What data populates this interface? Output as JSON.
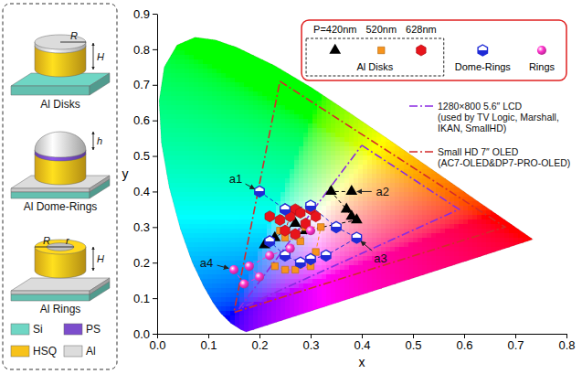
{
  "chart_data": {
    "type": "scatter",
    "x_label": "x",
    "y_label": "y",
    "xlim": [
      0,
      0.8
    ],
    "ylim": [
      0,
      0.9
    ],
    "xticks": [
      {
        "value": 0,
        "label": "0.0"
      },
      0.1,
      0.2,
      0.3,
      0.4,
      0.5,
      0.6,
      0.7,
      0.8
    ],
    "yticks": [
      {
        "value": 0,
        "label": "0.0"
      },
      0.1,
      0.2,
      0.3,
      0.4,
      0.5,
      0.6,
      0.7,
      0.8,
      0.9
    ],
    "legend": "top-right",
    "legend_groups": [
      {
        "title": "Al Disks",
        "members": [
          "P=420nm",
          "520nm",
          "628nm"
        ]
      }
    ],
    "spectral_locus": {
      "x": [
        0.1741,
        0.1644,
        0.1566,
        0.144,
        0.1241,
        0.1096,
        0.0913,
        0.0687,
        0.0454,
        0.0235,
        0.0082,
        0.0039,
        0.0139,
        0.0389,
        0.0743,
        0.1142,
        0.1547,
        0.2296,
        0.3016,
        0.3731,
        0.4441,
        0.5125,
        0.5752,
        0.627,
        0.6915,
        0.7347
      ],
      "y": [
        0.005,
        0.0109,
        0.0177,
        0.0297,
        0.0578,
        0.0868,
        0.1327,
        0.2007,
        0.295,
        0.4127,
        0.5384,
        0.6548,
        0.7502,
        0.812,
        0.8338,
        0.8262,
        0.8059,
        0.7543,
        0.6923,
        0.6245,
        0.5547,
        0.4866,
        0.4242,
        0.3725,
        0.3083,
        0.2653
      ]
    },
    "series": [
      {
        "name": "P=420nm",
        "color": "#000000",
        "marker": "triangle",
        "line_style": "dashed",
        "x": [
          0.38,
          0.34,
          0.37,
          0.38,
          0.39,
          0.29,
          0.27,
          0.23,
          0.21
        ],
        "y": [
          0.4,
          0.4,
          0.35,
          0.33,
          0.32,
          0.29,
          0.31,
          0.27,
          0.25
        ]
      },
      {
        "name": "520nm",
        "color": "#f7941d",
        "marker": "square",
        "line_style": "dashed",
        "x": [
          0.23,
          0.25,
          0.27,
          0.3,
          0.31,
          0.32,
          0.29,
          0.28,
          0.25,
          0.24
        ],
        "y": [
          0.19,
          0.18,
          0.18,
          0.19,
          0.23,
          0.3,
          0.3,
          0.26,
          0.27,
          0.29
        ]
      },
      {
        "name": "628nm",
        "color": "#e8141b",
        "marker": "hexagon",
        "line_style": "dashed",
        "x": [
          0.22,
          0.24,
          0.25,
          0.27,
          0.28,
          0.3,
          0.31,
          0.29,
          0.27,
          0.25,
          0.26
        ],
        "y": [
          0.33,
          0.32,
          0.35,
          0.35,
          0.34,
          0.35,
          0.33,
          0.31,
          0.28,
          0.29,
          0.33
        ]
      },
      {
        "name": "Dome-Rings",
        "color": "#1f2bd6",
        "marker": "dome-hexagon",
        "line_style": "dashed",
        "x": [
          0.2,
          0.25,
          0.3,
          0.35,
          0.39,
          0.33,
          0.3,
          0.28,
          0.25,
          0.22
        ],
        "y": [
          0.4,
          0.35,
          0.36,
          0.3,
          0.27,
          0.22,
          0.21,
          0.2,
          0.22,
          0.26
        ]
      },
      {
        "name": "Rings",
        "color": "#ff33cc",
        "marker": "sphere",
        "line_style": "dashed",
        "x": [
          0.15,
          0.17,
          0.2,
          0.18,
          0.22,
          0.26,
          0.3
        ],
        "y": [
          0.18,
          0.14,
          0.16,
          0.19,
          0.22,
          0.24,
          0.29
        ]
      },
      {
        "name": "1280×800 5.6″ LCD",
        "description": "(used by TV Logic, Marshall, IKAN, SmallHD)",
        "type": "line",
        "color": "#8a2be2",
        "line_style": "dash-dot",
        "x": [
          0.4,
          0.59,
          0.16,
          0.4
        ],
        "y": [
          0.53,
          0.35,
          0.07,
          0.53
        ]
      },
      {
        "name": "Small HD 7″ OLED",
        "description": "(AC7-OLED&DP7-PRO-OLED)",
        "type": "line",
        "color": "#d42a2a",
        "line_style": "dash-dot",
        "x": [
          0.24,
          0.68,
          0.15,
          0.24
        ],
        "y": [
          0.71,
          0.3,
          0.06,
          0.71
        ]
      }
    ],
    "annotations": [
      {
        "text": "a1",
        "x": 0.2,
        "y": 0.4
      },
      {
        "text": "a2",
        "x": 0.38,
        "y": 0.4
      },
      {
        "text": "a3",
        "x": 0.39,
        "y": 0.27
      },
      {
        "text": "a4",
        "x": 0.15,
        "y": 0.18
      }
    ]
  },
  "schematic": {
    "panels": [
      {
        "label": "Al Disks",
        "dims": [
          "R",
          "H"
        ]
      },
      {
        "label": "Al Dome-Rings",
        "dims": [
          "h"
        ]
      },
      {
        "label": "Al Rings",
        "dims": [
          "R",
          "r",
          "H"
        ]
      }
    ],
    "materials": [
      {
        "name": "Si",
        "color": "#6fd6c4"
      },
      {
        "name": "PS",
        "color": "#7c4dcc"
      },
      {
        "name": "HSQ",
        "color": "#f7c21a"
      },
      {
        "name": "Al",
        "color": "#dcdcdc"
      }
    ]
  }
}
